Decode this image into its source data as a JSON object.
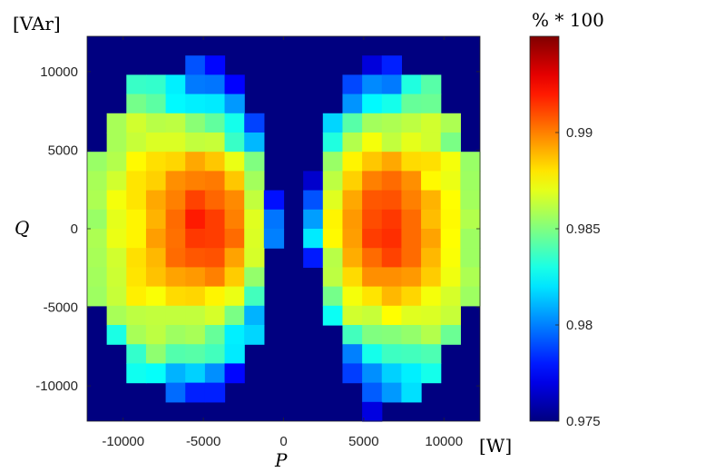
{
  "chart_data": {
    "type": "heatmap",
    "title": "",
    "xlabel": "P",
    "ylabel": "Q",
    "x_unit": "[W]",
    "y_unit": "[VAr]",
    "colorbar_label": "% * 100",
    "colormap": "jet",
    "xlim": [
      -12250,
      12250
    ],
    "ylim": [
      -12250,
      12250
    ],
    "clim": [
      0.975,
      0.995
    ],
    "x_ticks": [
      -10000,
      -5000,
      0,
      5000,
      10000
    ],
    "y_ticks": [
      -10000,
      -5000,
      0,
      5000,
      10000
    ],
    "colorbar_ticks": [
      0.975,
      0.98,
      0.985,
      0.99
    ],
    "x_tick_labels": [
      "-10000",
      "-5000",
      "0",
      "5000",
      "10000"
    ],
    "y_tick_labels": [
      "-10000",
      "-5000",
      "0",
      "5000",
      "10000"
    ],
    "colorbar_tick_labels": [
      "0.975",
      "0.98",
      "0.985",
      "0.99"
    ],
    "cell_size": 1225,
    "x_centers": [
      -11638,
      -10413,
      -9188,
      -7963,
      -6738,
      -5513,
      -4288,
      -3063,
      -1838,
      -613,
      613,
      1838,
      3063,
      4288,
      5513,
      6738,
      7963,
      9188,
      10413,
      11638
    ],
    "y_centers": [
      11638,
      10413,
      9188,
      7963,
      6738,
      5513,
      4288,
      3063,
      1838,
      613,
      -613,
      -1838,
      -3063,
      -4288,
      -5513,
      -6738,
      -7963,
      -9188,
      -10413,
      -11638
    ],
    "background_value": 0.975,
    "values": [
      [
        0.975,
        0.975,
        0.975,
        0.975,
        0.975,
        0.975,
        0.975,
        0.975,
        0.975,
        0.975,
        0.975,
        0.975,
        0.975,
        0.975,
        0.975,
        0.975,
        0.975,
        0.975,
        0.975,
        0.975
      ],
      [
        0.975,
        0.975,
        0.975,
        0.975,
        0.975,
        0.9791,
        0.9776,
        0.975,
        0.975,
        0.975,
        0.975,
        0.975,
        0.975,
        0.975,
        0.9768,
        0.9781,
        0.975,
        0.975,
        0.975,
        0.975
      ],
      [
        0.975,
        0.975,
        0.9836,
        0.9835,
        0.9822,
        0.9799,
        0.9798,
        0.9775,
        0.975,
        0.975,
        0.975,
        0.975,
        0.975,
        0.9789,
        0.9802,
        0.9799,
        0.9831,
        0.9842,
        0.975,
        0.975
      ],
      [
        0.975,
        0.975,
        0.9848,
        0.9843,
        0.9824,
        0.9822,
        0.9821,
        0.9805,
        0.975,
        0.975,
        0.975,
        0.975,
        0.975,
        0.9804,
        0.9824,
        0.9829,
        0.9845,
        0.9846,
        0.975,
        0.975
      ],
      [
        0.975,
        0.9858,
        0.9866,
        0.9861,
        0.9862,
        0.9852,
        0.9844,
        0.9829,
        0.9788,
        0.975,
        0.975,
        0.975,
        0.9817,
        0.9842,
        0.9857,
        0.9859,
        0.9862,
        0.9866,
        0.9859,
        0.975
      ],
      [
        0.975,
        0.9858,
        0.9864,
        0.9868,
        0.9868,
        0.9863,
        0.9864,
        0.9836,
        0.9811,
        0.975,
        0.975,
        0.975,
        0.9831,
        0.986,
        0.9873,
        0.9863,
        0.987,
        0.9866,
        0.9849,
        0.975
      ],
      [
        0.9855,
        0.986,
        0.9876,
        0.9881,
        0.9883,
        0.9892,
        0.9886,
        0.9871,
        0.985,
        0.975,
        0.975,
        0.975,
        0.9855,
        0.9877,
        0.9886,
        0.9892,
        0.9882,
        0.9881,
        0.9873,
        0.9855
      ],
      [
        0.9858,
        0.9866,
        0.988,
        0.9884,
        0.9897,
        0.99,
        0.9901,
        0.9886,
        0.9857,
        0.975,
        0.975,
        0.9765,
        0.9862,
        0.9884,
        0.99,
        0.9904,
        0.9897,
        0.9876,
        0.9871,
        0.9856
      ],
      [
        0.9859,
        0.9873,
        0.988,
        0.9892,
        0.99,
        0.9912,
        0.9905,
        0.9898,
        0.9863,
        0.9778,
        0.975,
        0.9791,
        0.9869,
        0.9892,
        0.9908,
        0.9909,
        0.99,
        0.989,
        0.9875,
        0.9857
      ],
      [
        0.9855,
        0.987,
        0.9877,
        0.989,
        0.9904,
        0.992,
        0.9913,
        0.99,
        0.9869,
        0.9798,
        0.975,
        0.9806,
        0.9877,
        0.9895,
        0.991,
        0.9914,
        0.9904,
        0.9888,
        0.9876,
        0.986
      ],
      [
        0.9859,
        0.9871,
        0.9877,
        0.9894,
        0.9903,
        0.9914,
        0.9913,
        0.9904,
        0.9868,
        0.98,
        0.975,
        0.9821,
        0.9876,
        0.9894,
        0.9913,
        0.9916,
        0.9904,
        0.9893,
        0.9875,
        0.9856
      ],
      [
        0.9858,
        0.9866,
        0.9881,
        0.9889,
        0.9904,
        0.9908,
        0.9909,
        0.9893,
        0.9867,
        0.975,
        0.975,
        0.978,
        0.9861,
        0.9891,
        0.9904,
        0.9912,
        0.9904,
        0.9889,
        0.9874,
        0.9856
      ],
      [
        0.9857,
        0.9865,
        0.988,
        0.9887,
        0.9893,
        0.9895,
        0.99,
        0.9885,
        0.9854,
        0.975,
        0.975,
        0.975,
        0.9862,
        0.9882,
        0.9897,
        0.9897,
        0.9895,
        0.9885,
        0.9872,
        0.9859
      ],
      [
        0.9856,
        0.9864,
        0.9878,
        0.9874,
        0.9882,
        0.9883,
        0.9877,
        0.9871,
        0.9838,
        0.975,
        0.975,
        0.975,
        0.9848,
        0.9873,
        0.988,
        0.9889,
        0.9883,
        0.9873,
        0.9867,
        0.9856
      ],
      [
        0.975,
        0.9858,
        0.9862,
        0.9863,
        0.9863,
        0.9863,
        0.9867,
        0.9849,
        0.981,
        0.975,
        0.975,
        0.975,
        0.9827,
        0.9866,
        0.9864,
        0.9875,
        0.9869,
        0.9868,
        0.9864,
        0.975
      ],
      [
        0.975,
        0.983,
        0.9858,
        0.9862,
        0.9856,
        0.9858,
        0.9845,
        0.9822,
        0.9817,
        0.975,
        0.975,
        0.975,
        0.975,
        0.9838,
        0.985,
        0.9851,
        0.9854,
        0.986,
        0.9846,
        0.975
      ],
      [
        0.975,
        0.975,
        0.9835,
        0.9853,
        0.9841,
        0.9842,
        0.9838,
        0.9821,
        0.975,
        0.975,
        0.975,
        0.975,
        0.975,
        0.98,
        0.9829,
        0.9837,
        0.9838,
        0.984,
        0.975,
        0.975
      ],
      [
        0.975,
        0.975,
        0.9828,
        0.9826,
        0.981,
        0.9816,
        0.9803,
        0.9776,
        0.975,
        0.975,
        0.975,
        0.975,
        0.975,
        0.9787,
        0.9803,
        0.9816,
        0.9822,
        0.9829,
        0.975,
        0.975
      ],
      [
        0.975,
        0.975,
        0.975,
        0.975,
        0.9796,
        0.9781,
        0.9781,
        0.975,
        0.975,
        0.975,
        0.975,
        0.975,
        0.975,
        0.975,
        0.9793,
        0.9805,
        0.9819,
        0.975,
        0.975,
        0.975
      ],
      [
        0.975,
        0.975,
        0.975,
        0.975,
        0.975,
        0.975,
        0.975,
        0.975,
        0.975,
        0.975,
        0.975,
        0.975,
        0.975,
        0.975,
        0.9769,
        0.975,
        0.975,
        0.975,
        0.975,
        0.975
      ]
    ]
  }
}
